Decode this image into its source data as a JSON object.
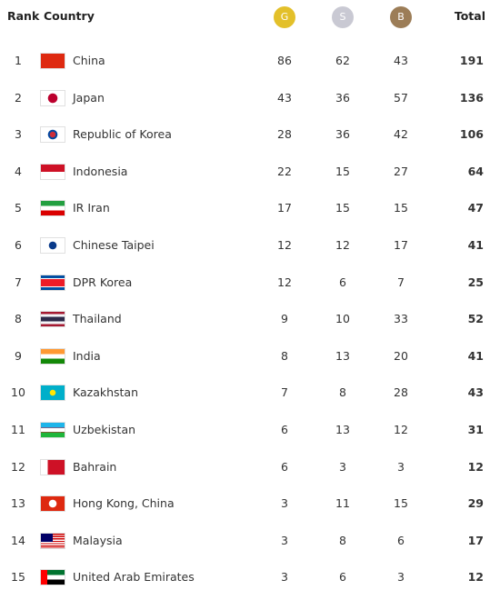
{
  "header": {
    "rank": "Rank",
    "country": "Country",
    "gold": "G",
    "silver": "S",
    "bronze": "B",
    "total": "Total"
  },
  "rows": [
    {
      "rank": 1,
      "country": "China",
      "gold": 86,
      "silver": 62,
      "bronze": 43,
      "total": 191
    },
    {
      "rank": 2,
      "country": "Japan",
      "gold": 43,
      "silver": 36,
      "bronze": 57,
      "total": 136
    },
    {
      "rank": 3,
      "country": "Republic of Korea",
      "gold": 28,
      "silver": 36,
      "bronze": 42,
      "total": 106
    },
    {
      "rank": 4,
      "country": "Indonesia",
      "gold": 22,
      "silver": 15,
      "bronze": 27,
      "total": 64
    },
    {
      "rank": 5,
      "country": "IR Iran",
      "gold": 17,
      "silver": 15,
      "bronze": 15,
      "total": 47
    },
    {
      "rank": 6,
      "country": "Chinese Taipei",
      "gold": 12,
      "silver": 12,
      "bronze": 17,
      "total": 41
    },
    {
      "rank": 7,
      "country": "DPR Korea",
      "gold": 12,
      "silver": 6,
      "bronze": 7,
      "total": 25
    },
    {
      "rank": 8,
      "country": "Thailand",
      "gold": 9,
      "silver": 10,
      "bronze": 33,
      "total": 52
    },
    {
      "rank": 9,
      "country": "India",
      "gold": 8,
      "silver": 13,
      "bronze": 20,
      "total": 41
    },
    {
      "rank": 10,
      "country": "Kazakhstan",
      "gold": 7,
      "silver": 8,
      "bronze": 28,
      "total": 43
    },
    {
      "rank": 11,
      "country": "Uzbekistan",
      "gold": 6,
      "silver": 13,
      "bronze": 12,
      "total": 31
    },
    {
      "rank": 12,
      "country": "Bahrain",
      "gold": 6,
      "silver": 3,
      "bronze": 3,
      "total": 12
    },
    {
      "rank": 13,
      "country": "Hong Kong, China",
      "gold": 3,
      "silver": 11,
      "bronze": 15,
      "total": 29
    },
    {
      "rank": 14,
      "country": "Malaysia",
      "gold": 3,
      "silver": 8,
      "bronze": 6,
      "total": 17
    },
    {
      "rank": 15,
      "country": "United Arab Emirates",
      "gold": 3,
      "silver": 6,
      "bronze": 3,
      "total": 12
    }
  ]
}
